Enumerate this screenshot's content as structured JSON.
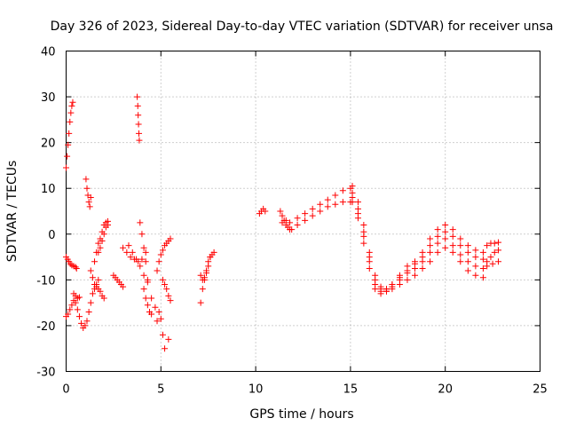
{
  "chart_data": {
    "type": "scatter",
    "title": "Day 326 of 2023, Sidereal Day-to-day VTEC variation (SDTVAR) for receiver unsa",
    "xlabel": "GPS time / hours",
    "ylabel": "SDTVAR / TECUs",
    "xlim": [
      0,
      25
    ],
    "ylim": [
      -30,
      40
    ],
    "xticks": [
      0,
      5,
      10,
      15,
      20,
      25
    ],
    "yticks": [
      -30,
      -20,
      -10,
      0,
      10,
      20,
      30,
      40
    ],
    "grid": true,
    "marker": "+",
    "color": "#ff0000",
    "series": [
      {
        "name": "SDTVAR",
        "x": [
          0.0,
          0.05,
          0.1,
          0.15,
          0.2,
          0.25,
          0.3,
          0.35,
          0.0,
          0.08,
          0.15,
          0.22,
          0.3,
          0.4,
          0.5,
          0.55,
          0.0,
          0.1,
          0.2,
          0.3,
          0.4,
          0.5,
          0.6,
          0.7,
          0.8,
          0.9,
          1.0,
          1.1,
          1.2,
          1.3,
          1.4,
          1.5,
          1.6,
          1.7,
          0.4,
          0.5,
          0.6,
          0.7,
          1.05,
          1.1,
          1.15,
          1.2,
          1.25,
          1.3,
          1.5,
          1.6,
          1.7,
          1.8,
          1.9,
          2.0,
          2.1,
          2.2,
          1.3,
          1.4,
          1.5,
          1.6,
          1.7,
          1.8,
          1.9,
          2.0,
          1.7,
          1.8,
          1.9,
          2.0,
          2.1,
          2.2,
          2.5,
          2.6,
          2.7,
          2.8,
          2.9,
          3.0,
          3.0,
          3.2,
          3.4,
          3.6,
          3.8,
          4.0,
          4.2,
          3.3,
          3.5,
          3.7,
          3.9,
          4.1,
          4.3,
          3.75,
          3.78,
          3.8,
          3.82,
          3.84,
          3.86,
          3.9,
          4.0,
          4.1,
          4.2,
          4.3,
          4.5,
          4.7,
          4.9,
          4.1,
          4.2,
          4.3,
          4.4,
          4.5,
          4.8,
          4.9,
          5.0,
          5.1,
          5.2,
          5.3,
          5.4,
          5.5,
          5.1,
          5.2,
          5.3,
          5.4,
          5.5,
          4.8,
          5.0,
          5.1,
          5.2,
          5.4,
          7.1,
          7.2,
          7.3,
          7.4,
          7.5,
          7.6,
          7.7,
          7.8,
          7.1,
          7.2,
          7.3,
          7.4,
          7.5,
          7.6,
          10.2,
          10.3,
          10.4,
          10.5,
          11.3,
          11.4,
          11.5,
          11.6,
          11.7,
          11.8,
          11.9,
          11.4,
          11.6,
          11.8,
          12.2,
          12.6,
          13.0,
          13.4,
          13.8,
          14.2,
          14.6,
          15.0,
          12.2,
          12.6,
          13.0,
          13.4,
          13.8,
          14.2,
          14.6,
          15.0,
          15.1,
          15.4,
          15.7,
          16.0,
          16.3,
          16.6,
          16.9,
          17.2,
          17.6,
          18.0,
          18.4,
          18.8,
          19.2,
          19.6,
          20.0,
          20.4,
          20.8,
          21.2,
          21.6,
          22.0,
          15.1,
          15.4,
          15.7,
          16.0,
          16.3,
          16.6,
          16.9,
          17.2,
          17.6,
          18.0,
          18.4,
          18.8,
          19.2,
          19.6,
          20.0,
          20.4,
          20.8,
          21.2,
          21.6,
          22.0,
          15.1,
          15.4,
          15.7,
          16.0,
          16.3,
          16.6,
          16.9,
          17.2,
          17.6,
          18.0,
          18.4,
          18.8,
          19.2,
          19.6,
          20.0,
          20.4,
          20.8,
          21.2,
          21.6,
          22.0,
          15.1,
          15.4,
          15.7,
          16.0,
          16.3,
          16.6,
          16.9,
          17.2,
          17.6,
          18.0,
          18.4,
          18.8,
          19.2,
          19.6,
          20.0,
          20.4,
          20.8,
          21.2,
          21.6,
          22.0,
          22.2,
          22.4,
          22.6,
          22.8,
          22.2,
          22.4,
          22.6,
          22.8,
          22.2,
          22.5,
          22.8
        ],
        "y": [
          14.5,
          17.0,
          19.5,
          22.0,
          24.5,
          26.5,
          28.0,
          28.8,
          -5.0,
          -5.5,
          -6.0,
          -6.5,
          -6.8,
          -7.0,
          -7.2,
          -7.5,
          -18.0,
          -17.5,
          -16.5,
          -15.5,
          -14.5,
          -15.0,
          -16.5,
          -18.0,
          -19.5,
          -20.5,
          -20.0,
          -19.0,
          -17.0,
          -15.0,
          -13.0,
          -12.0,
          -11.0,
          -10.0,
          -13.0,
          -13.5,
          -14.0,
          -13.8,
          12.0,
          10.0,
          8.5,
          7.0,
          6.0,
          8.0,
          -6.0,
          -4.0,
          -2.0,
          -1.0,
          0.5,
          2.0,
          2.5,
          2.8,
          -8.0,
          -9.5,
          -11.0,
          -11.5,
          -12.0,
          -12.5,
          -13.5,
          -14.0,
          -4.0,
          -3.0,
          -1.5,
          0.0,
          1.5,
          2.0,
          -9.0,
          -9.5,
          -10.0,
          -10.5,
          -11.0,
          -11.5,
          -3.0,
          -4.0,
          -5.0,
          -5.5,
          -6.0,
          -5.5,
          -4.0,
          -2.5,
          -4.0,
          -5.5,
          -7.0,
          -9.0,
          -10.5,
          30.0,
          28.0,
          26.0,
          24.0,
          22.0,
          20.5,
          2.5,
          0.0,
          -3.0,
          -6.0,
          -10.0,
          -14.0,
          -16.0,
          -17.0,
          -12.0,
          -14.0,
          -15.5,
          -17.0,
          -17.5,
          -8.0,
          -6.0,
          -4.5,
          -3.5,
          -2.5,
          -2.0,
          -1.5,
          -1.0,
          -10.0,
          -11.0,
          -12.0,
          -13.5,
          -14.5,
          -19.0,
          -18.5,
          -22.0,
          -25.0,
          -23.0,
          -15.0,
          -12.0,
          -10.0,
          -8.0,
          -6.0,
          -5.0,
          -4.5,
          -4.0,
          -9.0,
          -10.0,
          -9.5,
          -8.5,
          -7.0,
          -5.0,
          4.5,
          5.0,
          5.5,
          5.0,
          5.0,
          4.0,
          3.0,
          2.0,
          1.5,
          1.0,
          1.0,
          2.5,
          3.0,
          2.5,
          3.5,
          4.5,
          5.5,
          6.5,
          7.5,
          8.5,
          9.5,
          10.0,
          2.0,
          3.0,
          4.0,
          5.0,
          6.0,
          6.5,
          7.0,
          7.0,
          10.5,
          7.0,
          2.0,
          -4.0,
          -9.0,
          -11.5,
          -12.0,
          -11.0,
          -9.0,
          -7.0,
          -6.0,
          -4.0,
          -1.0,
          1.0,
          2.0,
          1.0,
          -1.0,
          -2.5,
          -3.5,
          -4.0,
          9.0,
          5.5,
          0.5,
          -5.0,
          -10.0,
          -12.0,
          -12.0,
          -11.0,
          -9.5,
          -8.0,
          -6.5,
          -5.0,
          -2.5,
          -0.5,
          0.5,
          -0.5,
          -2.5,
          -4.0,
          -5.0,
          -5.5,
          8.0,
          4.5,
          -0.5,
          -6.0,
          -11.0,
          -12.5,
          -12.5,
          -11.5,
          -10.0,
          -8.5,
          -7.5,
          -6.0,
          -4.0,
          -2.0,
          -1.0,
          -2.5,
          -4.5,
          -6.0,
          -7.0,
          -7.5,
          7.0,
          3.5,
          -2.0,
          -7.5,
          -12.0,
          -13.0,
          -12.5,
          -12.0,
          -11.0,
          -10.0,
          -9.0,
          -7.5,
          -6.0,
          -4.0,
          -3.0,
          -4.0,
          -6.0,
          -8.0,
          -9.0,
          -9.5,
          -2.5,
          -2.0,
          -2.0,
          -1.8,
          -6.0,
          -5.0,
          -4.0,
          -3.5,
          -7.0,
          -6.5,
          -6.0
        ]
      }
    ]
  }
}
